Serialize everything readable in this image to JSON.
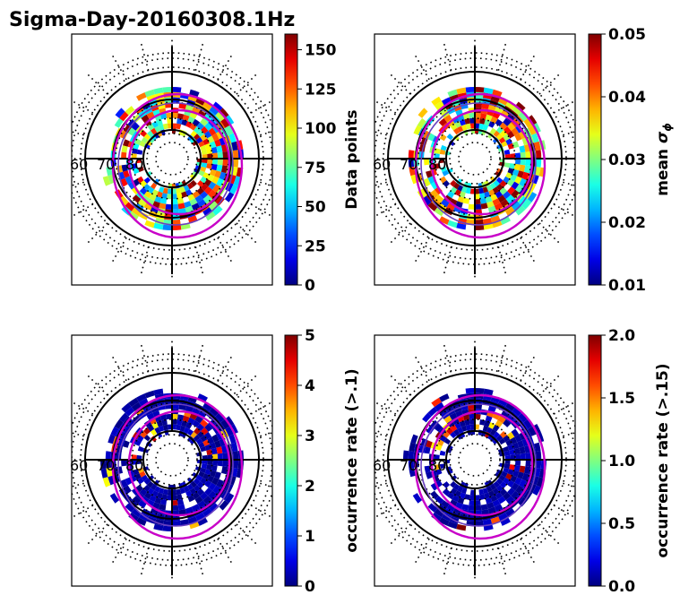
{
  "figure": {
    "title": "Sigma-Day-20160308.1Hz"
  },
  "chart_data": [
    {
      "type": "heatmap",
      "projection": "polar",
      "colormap": "jet",
      "lat_labels": [
        "60",
        "70",
        "80"
      ],
      "colorbar": {
        "label": "Data points",
        "range": [
          0,
          160
        ],
        "ticks": [
          "0",
          "25",
          "50",
          "75",
          "100",
          "125",
          "150"
        ],
        "tick_values": [
          0,
          25,
          50,
          75,
          100,
          125,
          150
        ]
      },
      "seed": 11,
      "high_bias": 0.35
    },
    {
      "type": "heatmap",
      "projection": "polar",
      "colormap": "jet",
      "lat_labels": [
        "60",
        "70",
        "80"
      ],
      "colorbar": {
        "label": "mean",
        "label_symbol": "σ",
        "label_sub": "ϕ",
        "range": [
          0.01,
          0.05
        ],
        "ticks": [
          "0.01",
          "0.02",
          "0.03",
          "0.04",
          "0.05"
        ],
        "tick_values": [
          0.01,
          0.02,
          0.03,
          0.04,
          0.05
        ]
      },
      "seed": 23,
      "high_bias": 0.45
    },
    {
      "type": "heatmap",
      "projection": "polar",
      "colormap": "jet",
      "lat_labels": [
        "60",
        "70",
        "80"
      ],
      "colorbar": {
        "label": "occurrence rate (>.1)",
        "range": [
          0,
          5
        ],
        "ticks": [
          "0",
          "1",
          "2",
          "3",
          "4",
          "5"
        ],
        "tick_values": [
          0,
          1,
          2,
          3,
          4,
          5
        ]
      },
      "seed": 37,
      "high_bias": 0.05
    },
    {
      "type": "heatmap",
      "projection": "polar",
      "colormap": "jet",
      "lat_labels": [
        "60",
        "70",
        "80"
      ],
      "colorbar": {
        "label": "occurrence rate (>.15)",
        "range": [
          0,
          2
        ],
        "ticks": [
          "0.0",
          "0.5",
          "1.0",
          "1.5",
          "2.0"
        ],
        "tick_values": [
          0,
          0.5,
          1,
          1.5,
          2
        ]
      },
      "seed": 41,
      "high_bias": 0.03
    }
  ]
}
